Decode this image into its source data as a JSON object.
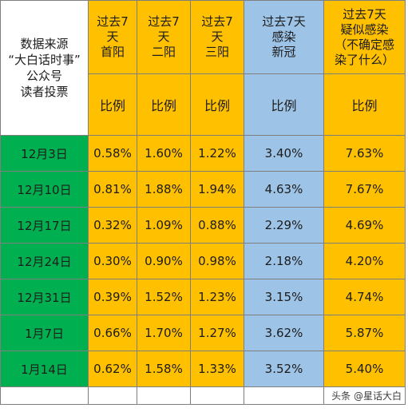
{
  "source_note": "数据来源\n“大白话时事”\n公众号\n读者投票",
  "headers": [
    "过去7\n天\n首阳",
    "过去7\n天\n二阳",
    "过去7\n天\n三阳",
    "过去7天\n感染\n新冠",
    "过去7天\n疑似感染\n（不确定感\n染了什么）"
  ],
  "ratio_label": "比例",
  "rows": [
    {
      "date": "12月3日",
      "values": [
        "0.58%",
        "1.60%",
        "1.22%",
        "3.40%",
        "7.63%"
      ]
    },
    {
      "date": "12月10日",
      "values": [
        "0.81%",
        "1.88%",
        "1.94%",
        "4.63%",
        "7.67%"
      ]
    },
    {
      "date": "12月17日",
      "values": [
        "0.32%",
        "1.09%",
        "0.88%",
        "2.29%",
        "4.69%"
      ]
    },
    {
      "date": "12月24日",
      "values": [
        "0.30%",
        "0.90%",
        "0.98%",
        "2.18%",
        "4.20%"
      ]
    },
    {
      "date": "12月31日",
      "values": [
        "0.39%",
        "1.52%",
        "1.23%",
        "3.15%",
        "4.74%"
      ]
    },
    {
      "date": "1月7日",
      "values": [
        "0.66%",
        "1.70%",
        "1.27%",
        "3.62%",
        "5.87%"
      ]
    },
    {
      "date": "1月14日",
      "values": [
        "0.62%",
        "1.58%",
        "1.33%",
        "3.52%",
        "5.40%"
      ]
    }
  ],
  "watermark": "头条 @星话大白",
  "colors": {
    "header_yellow": "#ffc000",
    "header_blue": "#9dc3e6",
    "date_green": "#00b050"
  }
}
